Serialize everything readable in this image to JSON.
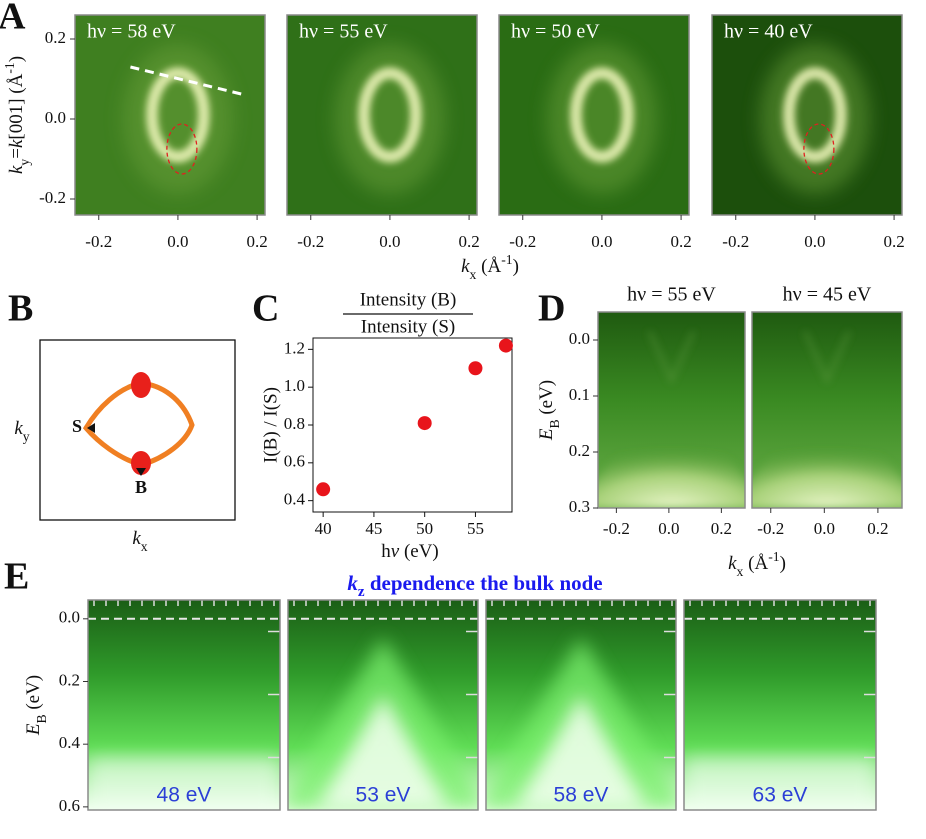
{
  "chart_data": [
    {
      "type": "image-grid",
      "panel": "A",
      "subtitles": [
        "hν = 58 eV",
        "hν = 55 eV",
        "hν = 50 eV",
        "hν = 40 eV"
      ],
      "xlabel": [
        "k",
        "x",
        " (Å",
        "-1",
        ")"
      ],
      "ylabel": [
        "k",
        "y",
        "=",
        "k",
        "[001] (Å",
        "-1",
        ")"
      ],
      "xlim": [
        -0.26,
        0.22
      ],
      "ylim": [
        -0.24,
        0.26
      ],
      "xticks": [
        -0.2,
        {
          "value": 0,
          "label": "0.0"
        },
        0.2
      ],
      "yticks": [
        -0.2,
        {
          "value": 0,
          "label": "0.0"
        },
        0.2
      ]
    },
    {
      "type": "diagram",
      "panel": "B",
      "points": [
        "S",
        "B"
      ],
      "xlabel": [
        "k",
        "x"
      ],
      "ylabel": [
        "k",
        "y"
      ]
    },
    {
      "type": "scatter",
      "panel": "C",
      "title": {
        "numerator": "Intensity (B)",
        "denominator": "Intensity (S)"
      },
      "xlabel": [
        "h",
        "ν",
        " (eV)"
      ],
      "ylabel": "I(B) / I(S)",
      "x": [
        40,
        50,
        55,
        58
      ],
      "values": [
        0.46,
        0.81,
        1.1,
        1.22
      ],
      "color": "#e8141b",
      "xlim": [
        39,
        58.6
      ],
      "ylim": [
        0.34,
        1.26
      ],
      "xticks": [
        40,
        45,
        50,
        55
      ],
      "yticks": [
        0.4,
        0.6,
        0.8,
        {
          "value": 1,
          "label": "1.0"
        },
        1.2
      ]
    },
    {
      "type": "image-grid",
      "panel": "D",
      "subtitles": [
        "hν = 55 eV",
        "hν = 45 eV"
      ],
      "xlabel": [
        "k",
        "x",
        " (Å",
        "-1",
        ")"
      ],
      "ylabel": [
        "E",
        "B",
        " (eV)"
      ],
      "xlim": [
        -0.27,
        0.29
      ],
      "ylim": [
        0.3,
        -0.05
      ],
      "xticks": [
        -0.2,
        {
          "value": 0,
          "label": "0.0"
        },
        0.2
      ],
      "yticks": [
        {
          "value": 0,
          "label": "0.0"
        },
        0.1,
        0.2,
        0.3
      ]
    },
    {
      "type": "image-grid",
      "panel": "E",
      "title": [
        "k",
        "z",
        " dependence the bulk node"
      ],
      "captions": [
        "48 eV",
        "53 eV",
        "58 eV",
        "63 eV"
      ],
      "ylabel": [
        "E",
        "B",
        " (eV)"
      ],
      "ylim": [
        0.61,
        -0.06
      ],
      "yticks": [
        {
          "value": 0,
          "label": "0.0"
        },
        0.2,
        0.4,
        0.6
      ]
    }
  ]
}
